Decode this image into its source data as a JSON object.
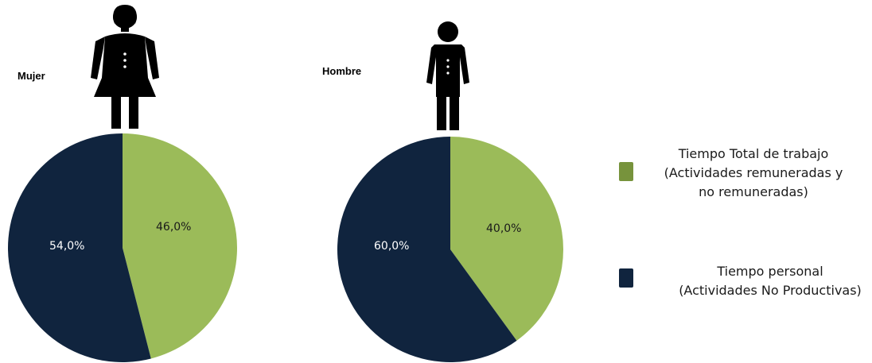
{
  "chart_data": [
    {
      "type": "pie",
      "title": "Mujer",
      "slices": [
        {
          "label": "Tiempo Total de trabajo (Actividades remuneradas y no remuneradas)",
          "value": 46.0,
          "display": "46,0%"
        },
        {
          "label": "Tiempo personal (Actividades No Productivas)",
          "value": 54.0,
          "display": "54,0%"
        }
      ]
    },
    {
      "type": "pie",
      "title": "Hombre",
      "slices": [
        {
          "label": "Tiempo Total de trabajo (Actividades remuneradas y no remuneradas)",
          "value": 40.0,
          "display": "40,0%"
        },
        {
          "label": "Tiempo personal (Actividades No Productivas)",
          "value": 60.0,
          "display": "60,0%"
        }
      ]
    }
  ],
  "legend": [
    {
      "lines": [
        "Tiempo Total de trabajo",
        "(Actividades remuneradas y",
        "no remuneradas)"
      ],
      "color": "#9bbb59",
      "swatch_color": "#77933c"
    },
    {
      "lines": [
        "Tiempo personal",
        "(Actividades No Productivas)"
      ],
      "color": "#10243e",
      "swatch_color": "#10243e"
    }
  ],
  "colors": {
    "work": "#9bbb59",
    "personal": "#10243e",
    "icon": "#000000"
  },
  "icons": {
    "woman": "woman-icon",
    "man": "man-icon"
  }
}
